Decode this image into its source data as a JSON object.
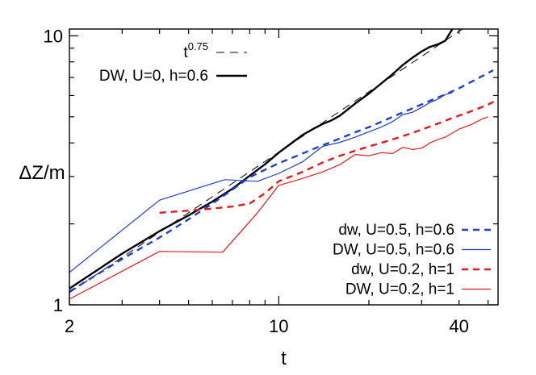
{
  "chart_data": {
    "type": "line",
    "xlabel": "t",
    "ylabel": "ΔZ/m",
    "xscale": "log",
    "yscale": "log",
    "xlim": [
      2,
      54
    ],
    "ylim": [
      1,
      10.6
    ],
    "xticks": [
      {
        "value": 2,
        "label": "2"
      },
      {
        "value": 10,
        "label": "10"
      },
      {
        "value": 40,
        "label": "40"
      }
    ],
    "yticks": [
      {
        "value": 1,
        "label": "1"
      },
      {
        "value": 10,
        "label": "10"
      }
    ],
    "legend_top": {
      "placement": "top-left"
    },
    "legend_bottom": {
      "placement": "bottom-right"
    },
    "series": [
      {
        "name_base": "t",
        "name_sup": "0.75",
        "color": "#000000",
        "style": "thin-dash",
        "legend": "top",
        "x": [
          2,
          54
        ],
        "y": [
          1.11,
          13.0
        ]
      },
      {
        "name": "DW, U=0, h=0.6",
        "color": "#000000",
        "style": "thick-solid",
        "legend": "top",
        "x": [
          2,
          3,
          4,
          5,
          6,
          7,
          8,
          9,
          10,
          11,
          12,
          13,
          14,
          15,
          16,
          18,
          20,
          22,
          24,
          26,
          28,
          30,
          32,
          34,
          36,
          38
        ],
        "y": [
          1.15,
          1.55,
          1.88,
          2.15,
          2.42,
          2.7,
          3.02,
          3.33,
          3.68,
          3.98,
          4.28,
          4.5,
          4.7,
          4.85,
          5.05,
          5.6,
          6.1,
          6.65,
          7.2,
          7.8,
          8.3,
          8.75,
          9.1,
          9.3,
          9.6,
          10.6
        ]
      },
      {
        "name": "dw, U=0.5, h=0.6",
        "color": "#1f3fcc",
        "style": "thick-dash",
        "legend": "bottom",
        "x": [
          2,
          3,
          4,
          5,
          6,
          7,
          8,
          9,
          10,
          12,
          14,
          16,
          18,
          20,
          22,
          24,
          26,
          28,
          30,
          32,
          34,
          36,
          38,
          40,
          44,
          48,
          52
        ],
        "y": [
          1.12,
          1.48,
          1.78,
          2.08,
          2.38,
          2.68,
          2.98,
          3.18,
          3.36,
          3.65,
          3.92,
          4.15,
          4.38,
          4.58,
          4.79,
          5.0,
          5.19,
          5.38,
          5.56,
          5.74,
          5.9,
          6.06,
          6.22,
          6.38,
          6.75,
          7.1,
          7.45
        ]
      },
      {
        "name": "DW, U=0.5, h=0.6",
        "color": "#1f3fcc",
        "style": "thin-solid",
        "legend": "bottom",
        "x": [
          2,
          4,
          6.6,
          8.5,
          10,
          12,
          14,
          16,
          18,
          20,
          22,
          24,
          26,
          28,
          30,
          32,
          34,
          36,
          38
        ],
        "y": [
          1.32,
          2.45,
          2.92,
          2.88,
          3.08,
          3.4,
          3.88,
          4.02,
          4.2,
          4.4,
          4.58,
          4.8,
          5.1,
          5.2,
          5.42,
          5.65,
          5.82,
          6.05,
          6.15
        ]
      },
      {
        "name": "dw, U=0.2, h=1",
        "color": "#e01a1a",
        "style": "thick-dash",
        "legend": "bottom",
        "x": [
          4,
          5,
          6,
          7,
          8,
          9,
          10,
          12,
          14,
          16,
          18,
          20,
          22,
          24,
          26,
          28,
          30,
          34,
          38,
          42,
          46,
          50,
          54
        ],
        "y": [
          2.2,
          2.24,
          2.28,
          2.32,
          2.38,
          2.6,
          2.88,
          3.12,
          3.38,
          3.58,
          3.74,
          3.88,
          4.0,
          4.12,
          4.24,
          4.36,
          4.48,
          4.72,
          4.95,
          5.15,
          5.35,
          5.55,
          5.8
        ]
      },
      {
        "name": "DW, U=0.2, h=1",
        "color": "#e01a1a",
        "style": "thin-solid",
        "legend": "bottom",
        "x": [
          2,
          4,
          6.5,
          8.5,
          10,
          12,
          14,
          16,
          18,
          20,
          22,
          24,
          26,
          28,
          30,
          32,
          34,
          36,
          38,
          40,
          44,
          48,
          50
        ],
        "y": [
          1.05,
          1.58,
          1.57,
          2.2,
          2.78,
          2.95,
          3.12,
          3.32,
          3.62,
          3.58,
          3.68,
          3.65,
          3.85,
          3.78,
          3.82,
          4.0,
          4.12,
          4.2,
          4.35,
          4.5,
          4.68,
          4.92,
          5.0
        ]
      }
    ]
  }
}
